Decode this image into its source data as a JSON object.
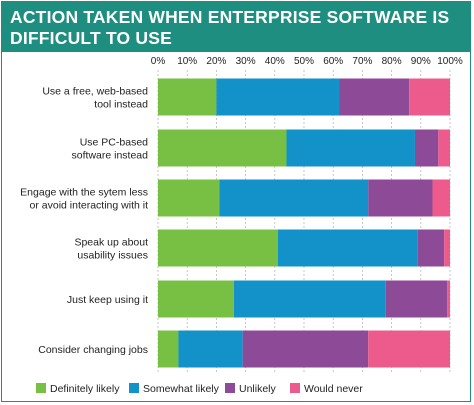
{
  "title_lines": [
    "ACTION TAKEN WHEN ENTERPRISE SOFTWARE IS",
    "DIFFICULT TO USE"
  ],
  "colors": {
    "brand": "#1e8e80",
    "series": [
      "#77c043",
      "#1391c9",
      "#8c4a97",
      "#ec5b8c"
    ]
  },
  "chart_data": {
    "type": "bar",
    "orientation": "horizontal",
    "stacked": true,
    "title": "ACTION TAKEN WHEN ENTERPRISE SOFTWARE IS DIFFICULT TO USE",
    "categories": [
      [
        "Use a free, web-based",
        "tool instead"
      ],
      [
        "Use PC-based",
        "software instead"
      ],
      [
        "Engage with the sytem less",
        "or avoid interacting with it"
      ],
      [
        "Speak up about",
        "usability issues"
      ],
      [
        "Just keep using it"
      ],
      [
        "Consider changing jobs"
      ]
    ],
    "series": [
      {
        "name": "Definitely likely",
        "values": [
          20,
          44,
          21,
          41,
          26,
          7
        ]
      },
      {
        "name": "Somewhat likely",
        "values": [
          42,
          44,
          51,
          48,
          52,
          22
        ]
      },
      {
        "name": "Unlikely",
        "values": [
          24,
          8,
          22,
          9,
          21,
          43
        ]
      },
      {
        "name": "Would never",
        "values": [
          14,
          4,
          6,
          2,
          1,
          28
        ]
      }
    ],
    "xlim": [
      0,
      100
    ],
    "x_ticks": [
      "0%",
      "10%",
      "20%",
      "30%",
      "40%",
      "50%",
      "60%",
      "70%",
      "80%",
      "90%",
      "100%"
    ],
    "grid": true,
    "legend": "bottom"
  }
}
